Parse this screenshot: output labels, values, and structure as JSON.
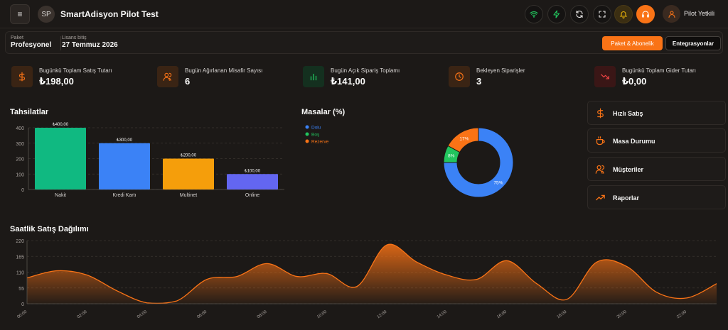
{
  "header": {
    "menu_icon": "menu-icon",
    "brand_initials": "SP",
    "title": "SmartAdisyon Pilot Test",
    "user_name": "Pilot Yetkili",
    "icons": [
      "wifi-icon",
      "bolt-icon",
      "refresh-icon",
      "fullscreen-icon",
      "bell-icon",
      "headset-icon",
      "user-icon"
    ]
  },
  "license": {
    "package_caption": "Paket",
    "package_value": "Profesyonel",
    "license_caption": "Lisans bitiş",
    "license_value": "27 Temmuz 2026",
    "package_button": "Paket & Abonelik",
    "integrations_button": "Entegrasyonlar"
  },
  "stats": [
    {
      "label": "Bugünkü Toplam Satış Tutarı",
      "value": "₺198,00",
      "icon": "dollar-icon",
      "color": "#f97316"
    },
    {
      "label": "Bugün Ağırlanan Misafir Sayısı",
      "value": "6",
      "icon": "users-icon",
      "color": "#f97316"
    },
    {
      "label": "Bugün Açık Sipariş Toplamı",
      "value": "₺141,00",
      "icon": "bar-chart-icon",
      "color": "#22c55e"
    },
    {
      "label": "Bekleyen Siparişler",
      "value": "3",
      "icon": "clock-icon",
      "color": "#f97316"
    },
    {
      "label": "Bugünkü Toplam Gider Tutarı",
      "value": "₺0,00",
      "icon": "trending-down-icon",
      "color": "#ef4444"
    }
  ],
  "tahsilatlar": {
    "title": "Tahsilatlar",
    "chart_data": {
      "type": "bar",
      "categories": [
        "Nakit",
        "Kredi Kartı",
        "Multinet",
        "Online"
      ],
      "values": [
        400,
        300,
        200,
        100
      ],
      "value_labels": [
        "₺400,00",
        "₺300,00",
        "₺200,00",
        "₺100,00"
      ],
      "colors": [
        "#10b981",
        "#3b82f6",
        "#f59e0b",
        "#6366f1"
      ],
      "ylim": [
        0,
        400
      ],
      "yticks": [
        "0",
        "100",
        "200",
        "300",
        "400"
      ],
      "grid": true
    }
  },
  "masalar": {
    "title": "Masalar (%)",
    "chart_data": {
      "type": "pie",
      "labels": [
        "Dolu",
        "Boş",
        "Rezerve"
      ],
      "values": [
        75,
        8,
        17
      ],
      "value_labels": [
        "75%",
        "8%",
        "17%"
      ],
      "colors": [
        "#3b82f6",
        "#22c55e",
        "#f97316"
      ],
      "legend": "top-left"
    }
  },
  "quick_actions": [
    {
      "label": "Hızlı Satış",
      "icon": "dollar-icon"
    },
    {
      "label": "Masa Durumu",
      "icon": "coffee-icon"
    },
    {
      "label": "Müşteriler",
      "icon": "users-icon"
    },
    {
      "label": "Raporlar",
      "icon": "trending-up-icon"
    }
  ],
  "hourly": {
    "title": "Saatlik Satış Dağılımı",
    "chart_data": {
      "type": "area",
      "x": [
        "00:00",
        "01:00",
        "02:00",
        "03:00",
        "04:00",
        "05:00",
        "06:00",
        "07:00",
        "08:00",
        "09:00",
        "10:00",
        "11:00",
        "12:00",
        "13:00",
        "14:00",
        "15:00",
        "16:00",
        "17:00",
        "18:00",
        "19:00",
        "20:00",
        "21:00",
        "22:00",
        "23:00"
      ],
      "values": [
        90,
        115,
        100,
        45,
        3,
        10,
        85,
        95,
        140,
        95,
        105,
        60,
        205,
        145,
        100,
        85,
        150,
        70,
        15,
        145,
        130,
        40,
        20,
        70
      ],
      "xtick_labels": [
        "00:00",
        "02:00",
        "04:00",
        "06:00",
        "08:00",
        "10:00",
        "12:00",
        "14:00",
        "16:00",
        "18:00",
        "20:00",
        "22:00"
      ],
      "yticks": [
        "0",
        "55",
        "110",
        "165",
        "220"
      ],
      "ylim": [
        0,
        220
      ],
      "color": "#f97316",
      "grid": true
    }
  }
}
